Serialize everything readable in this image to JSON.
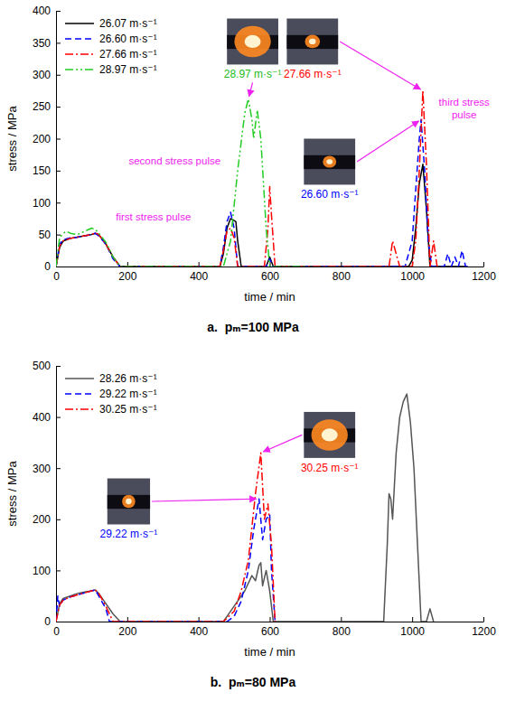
{
  "chart_data": [
    {
      "type": "line",
      "title": "a.  pₘ=100 MPa",
      "x_label": "time / min",
      "y_label": "stress / MPa",
      "xlim": [
        0,
        1200
      ],
      "xticks": [
        0,
        200,
        400,
        600,
        800,
        1000,
        1200
      ],
      "ylim": [
        0,
        400
      ],
      "yticks": [
        0,
        50,
        100,
        150,
        200,
        250,
        300,
        350,
        400
      ],
      "grid": false,
      "legend": "upper left",
      "series": [
        {
          "name": "26.07 m·s⁻¹",
          "color": "#000000",
          "line_style": "solid",
          "x": [
            0,
            10,
            20,
            40,
            60,
            80,
            100,
            110,
            120,
            140,
            160,
            180,
            460,
            470,
            480,
            490,
            500,
            505,
            510,
            520,
            590,
            600,
            610,
            990,
            1000,
            1010,
            1020,
            1030,
            1040,
            1050,
            1150
          ],
          "values": [
            0,
            30,
            40,
            44,
            46,
            48,
            50,
            52,
            50,
            35,
            15,
            0,
            0,
            20,
            60,
            75,
            72,
            70,
            40,
            0,
            0,
            15,
            0,
            0,
            10,
            60,
            130,
            160,
            90,
            0,
            0
          ]
        },
        {
          "name": "26.60 m·s⁻¹",
          "color": "#0000ff",
          "line_style": "dashed",
          "x": [
            0,
            10,
            20,
            40,
            60,
            80,
            100,
            110,
            120,
            140,
            160,
            180,
            460,
            470,
            480,
            490,
            500,
            510,
            590,
            600,
            610,
            980,
            990,
            1000,
            1010,
            1020,
            1025,
            1035,
            1045,
            1055,
            1090,
            1100,
            1110,
            1120,
            1130,
            1140,
            1150,
            1160
          ],
          "values": [
            0,
            35,
            42,
            45,
            46,
            48,
            50,
            52,
            48,
            35,
            12,
            0,
            0,
            30,
            70,
            85,
            60,
            0,
            0,
            12,
            0,
            0,
            20,
            40,
            120,
            200,
            230,
            150,
            40,
            0,
            0,
            20,
            0,
            15,
            0,
            25,
            0,
            0
          ]
        },
        {
          "name": "27.66 m·s⁻¹",
          "color": "#ff0000",
          "line_style": "dash_dot",
          "x": [
            0,
            10,
            20,
            40,
            60,
            80,
            100,
            110,
            120,
            140,
            160,
            180,
            460,
            470,
            480,
            490,
            500,
            510,
            585,
            595,
            600,
            605,
            615,
            935,
            945,
            955,
            965,
            1000,
            1010,
            1020,
            1030,
            1040,
            1050,
            1060,
            1070,
            1080
          ],
          "values": [
            0,
            32,
            40,
            44,
            46,
            48,
            50,
            53,
            50,
            35,
            15,
            0,
            0,
            25,
            55,
            60,
            45,
            0,
            0,
            60,
            125,
            80,
            0,
            0,
            40,
            20,
            0,
            0,
            40,
            150,
            275,
            160,
            0,
            40,
            0,
            0
          ]
        },
        {
          "name": "28.97 m·s⁻¹",
          "color": "#22cc22",
          "line_style": "dash_dot_dot",
          "x": [
            0,
            10,
            20,
            30,
            40,
            60,
            80,
            100,
            110,
            120,
            140,
            160,
            180,
            470,
            490,
            510,
            530,
            540,
            550,
            555,
            565,
            575,
            590,
            600,
            700
          ],
          "values": [
            0,
            45,
            52,
            55,
            52,
            50,
            55,
            60,
            58,
            52,
            38,
            15,
            0,
            0,
            40,
            150,
            240,
            262,
            230,
            200,
            245,
            200,
            60,
            0,
            0
          ]
        }
      ],
      "annotations": [
        {
          "text": "first stress pulse",
          "color": "#ee22ee"
        },
        {
          "text": "second stress pulse",
          "color": "#ee22ee"
        },
        {
          "text": "third stress pulse",
          "color": "#ee22ee"
        },
        {
          "text": "28.97 m·s⁻¹",
          "color": "#22bb22"
        },
        {
          "text": "27.66 m·s⁻¹",
          "color": "#ff0000"
        },
        {
          "text": "26.60 m·s⁻¹",
          "color": "#0000ff"
        }
      ]
    },
    {
      "type": "line",
      "title": "b.  pₘ=80 MPa",
      "x_label": "time / min",
      "y_label": "stress / MPa",
      "xlim": [
        0,
        1200
      ],
      "xticks": [
        0,
        200,
        400,
        600,
        800,
        1000,
        1200
      ],
      "ylim": [
        0,
        500
      ],
      "yticks": [
        0,
        100,
        200,
        300,
        400,
        500
      ],
      "grid": false,
      "legend": "upper left",
      "series": [
        {
          "name": "28.26 m·s⁻¹",
          "color": "#555555",
          "line_style": "solid",
          "x": [
            0,
            10,
            20,
            40,
            60,
            80,
            100,
            110,
            120,
            140,
            160,
            180,
            470,
            490,
            510,
            530,
            550,
            560,
            570,
            575,
            580,
            590,
            600,
            610,
            920,
            930,
            935,
            940,
            945,
            955,
            965,
            975,
            985,
            995,
            1005,
            1015,
            1025,
            1040,
            1050,
            1060
          ],
          "values": [
            0,
            35,
            45,
            50,
            55,
            58,
            60,
            62,
            55,
            35,
            15,
            0,
            0,
            20,
            40,
            60,
            90,
            80,
            110,
            115,
            70,
            100,
            60,
            0,
            0,
            150,
            250,
            240,
            200,
            330,
            400,
            430,
            445,
            390,
            300,
            150,
            0,
            0,
            25,
            0
          ]
        },
        {
          "name": "29.22 m·s⁻¹",
          "color": "#0000ff",
          "line_style": "dashed",
          "x": [
            0,
            5,
            10,
            20,
            40,
            60,
            80,
            100,
            110,
            120,
            140,
            150,
            480,
            500,
            520,
            540,
            555,
            570,
            580,
            590,
            600,
            605,
            615
          ],
          "values": [
            0,
            50,
            30,
            42,
            48,
            52,
            56,
            60,
            62,
            50,
            25,
            0,
            0,
            10,
            40,
            100,
            180,
            240,
            160,
            200,
            210,
            100,
            0
          ]
        },
        {
          "name": "30.25 m·s⁻¹",
          "color": "#ff0000",
          "line_style": "dash_dot",
          "x": [
            0,
            10,
            20,
            40,
            60,
            80,
            100,
            110,
            120,
            140,
            160,
            470,
            500,
            520,
            540,
            560,
            575,
            585,
            595,
            605,
            615
          ],
          "values": [
            0,
            32,
            42,
            48,
            52,
            56,
            60,
            62,
            55,
            30,
            0,
            0,
            20,
            60,
            120,
            250,
            330,
            200,
            230,
            150,
            0
          ]
        }
      ],
      "annotations": [
        {
          "text": "29.22 m·s⁻¹",
          "color": "#0000ff"
        },
        {
          "text": "30.25 m·s⁻¹",
          "color": "#ff0000"
        }
      ]
    }
  ]
}
